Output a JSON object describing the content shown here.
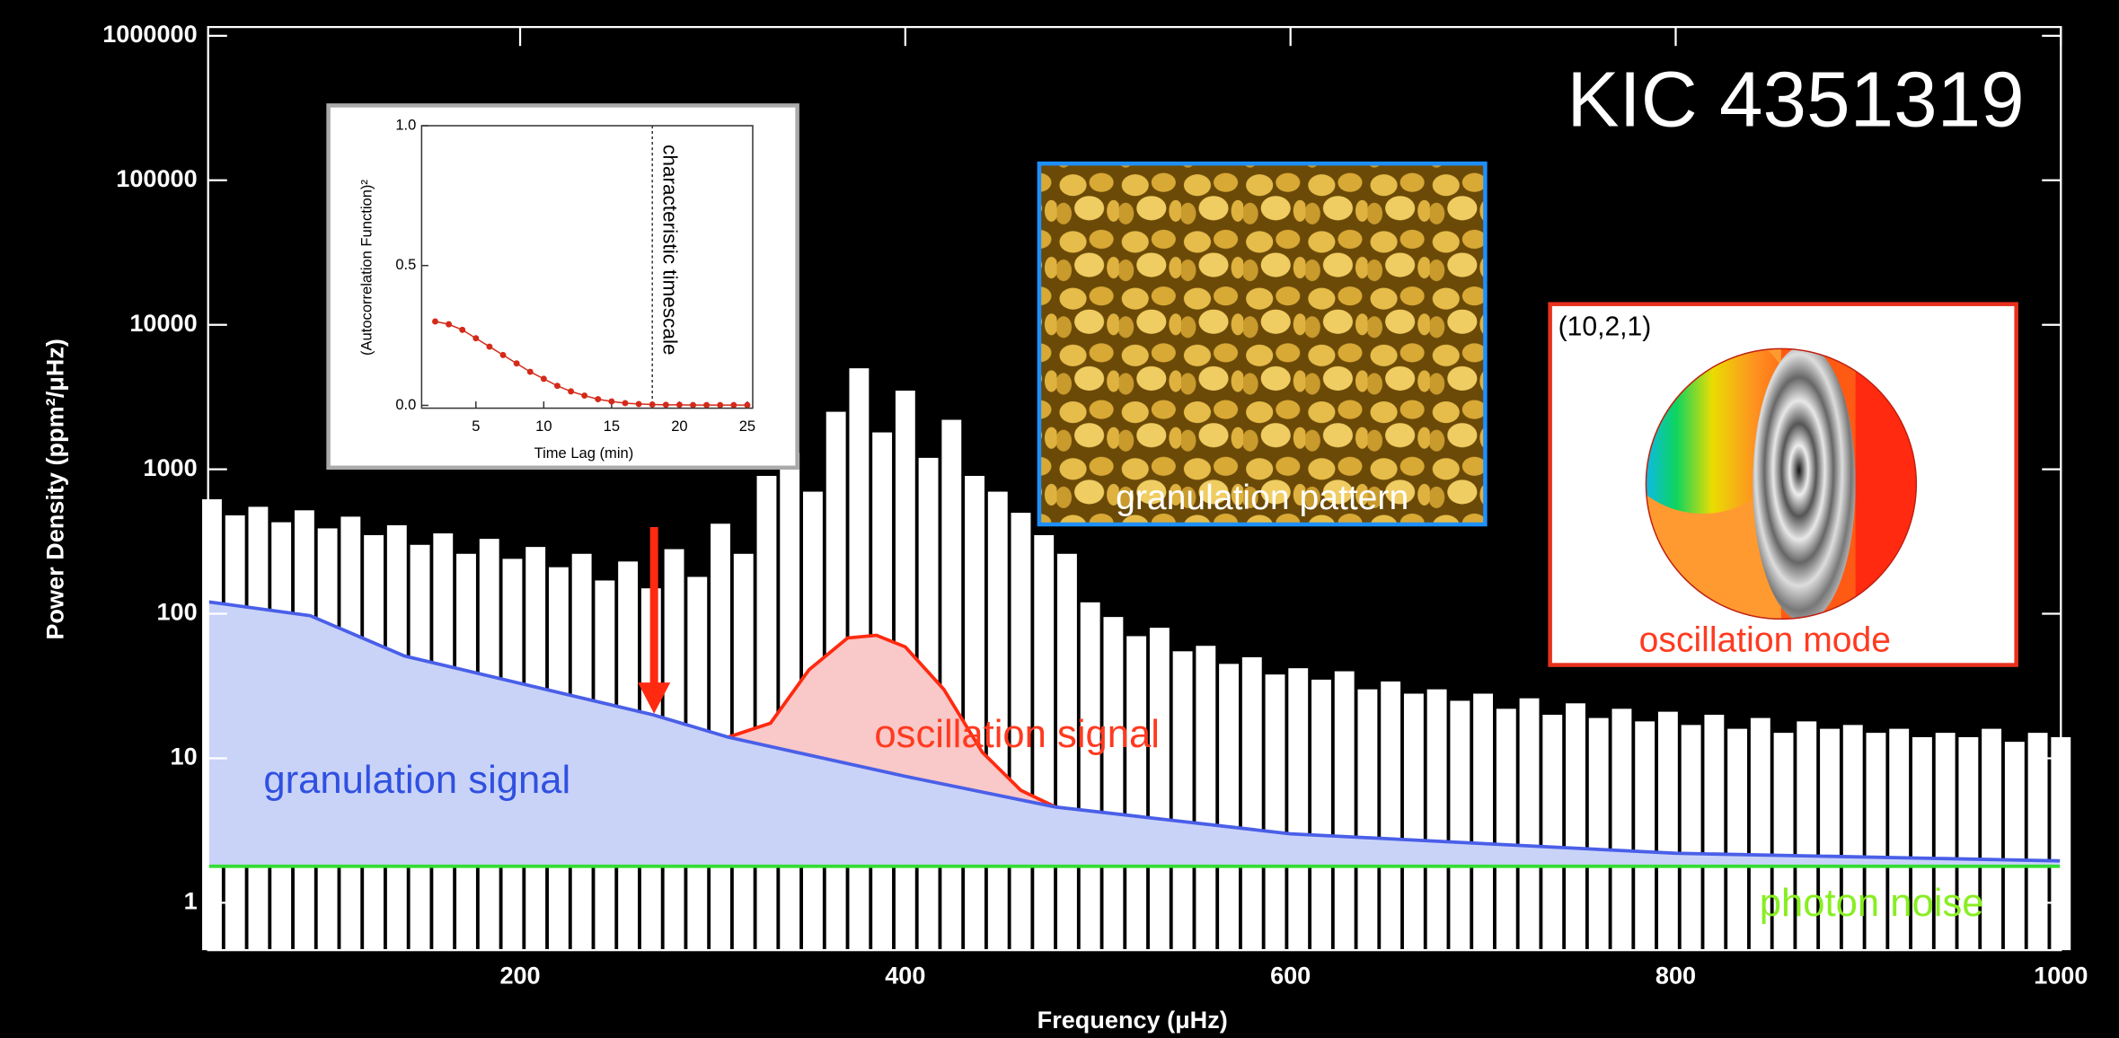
{
  "chart_data": [
    {
      "type": "line",
      "title": "KIC 4351319",
      "xlabel": "Frequency (μHz)",
      "ylabel": "Power Density (ppm²/μHz)",
      "log_y": true,
      "xlim": [
        38,
        1000
      ],
      "ylim": [
        0.47,
        1150000
      ],
      "xticks": [
        200,
        400,
        600,
        800,
        1000
      ],
      "yticks": [
        1,
        10,
        100,
        1000,
        10000,
        100000,
        1000000
      ],
      "series": [
        {
          "style": "spikes",
          "color": "#ffffff",
          "x": [
            40,
            52,
            64,
            76,
            88,
            100,
            112,
            124,
            136,
            148,
            160,
            172,
            184,
            196,
            208,
            220,
            232,
            244,
            256,
            268,
            280,
            292,
            304,
            316,
            328,
            340,
            352,
            364,
            376,
            388,
            400,
            412,
            424,
            436,
            448,
            460,
            472,
            484,
            496,
            508,
            520,
            532,
            544,
            556,
            568,
            580,
            592,
            604,
            616,
            628,
            640,
            652,
            664,
            676,
            688,
            700,
            712,
            724,
            736,
            748,
            760,
            772,
            784,
            796,
            808,
            820,
            832,
            844,
            856,
            868,
            880,
            892,
            904,
            916,
            928,
            940,
            952,
            964,
            976,
            988,
            1000
          ],
          "values": [
            620,
            480,
            550,
            430,
            520,
            390,
            470,
            350,
            410,
            300,
            360,
            260,
            330,
            240,
            290,
            210,
            260,
            170,
            230,
            150,
            280,
            180,
            420,
            260,
            900,
            1300,
            700,
            2500,
            5000,
            1800,
            3500,
            1200,
            2200,
            900,
            700,
            500,
            350,
            260,
            120,
            95,
            70,
            80,
            55,
            60,
            45,
            50,
            38,
            42,
            35,
            40,
            30,
            34,
            28,
            30,
            25,
            28,
            22,
            26,
            20,
            24,
            19,
            22,
            18,
            21,
            17,
            20,
            16,
            19,
            15,
            18,
            16,
            17,
            15,
            16,
            14,
            15,
            14,
            16,
            13,
            15,
            14
          ]
        },
        {
          "style": "area",
          "color": "#ff2a10",
          "fill": "#f9c8c8",
          "x": [
            308,
            330,
            350,
            370,
            385,
            400,
            420,
            440,
            460,
            478
          ],
          "values": [
            14,
            17.5,
            41,
            68,
            71,
            59,
            30,
            11,
            6,
            4.6
          ]
        },
        {
          "style": "area",
          "color": "#4a5fe8",
          "fill": "#c9d3f8",
          "x": [
            38,
            91,
            140,
            200,
            269,
            308,
            400,
            478,
            600,
            800,
            1000
          ],
          "values": [
            121,
            97,
            51,
            33,
            20,
            14,
            7.5,
            4.6,
            3.0,
            2.2,
            1.95
          ]
        },
        {
          "style": "line",
          "color": "#33dd33",
          "x": [
            38,
            1000
          ],
          "values": [
            1.79,
            1.79
          ]
        }
      ],
      "annotations": [
        "granulation signal",
        "oscillation signal",
        "photon noise",
        "granulation pattern",
        "(10,2,1)",
        "oscillation mode"
      ]
    },
    {
      "type": "scatter",
      "xlabel": "Time Lag (min)",
      "ylabel": "(Autocorrelation Function)²",
      "xlim": [
        1,
        25.4
      ],
      "ylim": [
        -0.01,
        1.0
      ],
      "xticks": [
        5,
        10,
        15,
        20,
        25
      ],
      "yticks": [
        {
          "value": 0,
          "label": "0.0"
        },
        {
          "value": 0.5,
          "label": "0.5"
        },
        {
          "value": 1,
          "label": "1.0"
        }
      ],
      "marker_x": 18,
      "annotation": "characteristic timescale",
      "series": [
        {
          "color": "#d42a1a",
          "x": [
            2,
            3,
            4,
            5,
            6,
            7,
            8,
            9,
            10,
            11,
            12,
            13,
            14,
            15,
            16,
            17,
            18,
            19,
            20,
            21,
            22,
            23,
            24,
            25
          ],
          "values": [
            0.3,
            0.29,
            0.27,
            0.24,
            0.21,
            0.18,
            0.15,
            0.12,
            0.095,
            0.07,
            0.05,
            0.035,
            0.022,
            0.014,
            0.008,
            0.005,
            0.003,
            0.002,
            0.002,
            0.001,
            0.001,
            0.001,
            0.001,
            0.001
          ]
        }
      ]
    }
  ]
}
